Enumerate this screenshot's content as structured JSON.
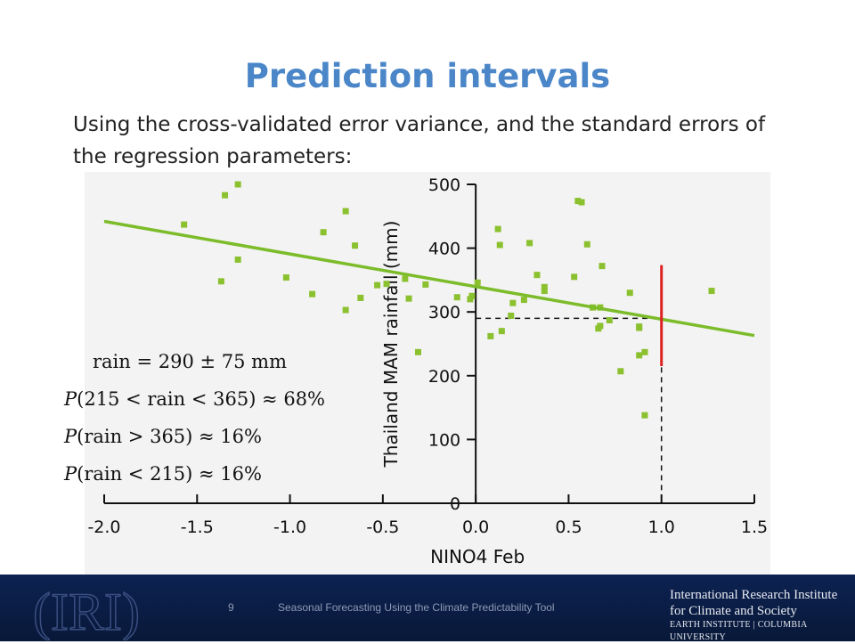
{
  "slide": {
    "title": "Prediction intervals",
    "subtitle": "Using the cross-validated error variance, and the standard errors of the regression parameters:"
  },
  "equations": {
    "eq1": "rain = 290 ± 75 mm",
    "eq2_p": "P",
    "eq2_body": "(215 < rain < 365) ≈ 68%",
    "eq3_p": "P",
    "eq3_body": "(rain > 365) ≈ 16%",
    "eq4_p": "P",
    "eq4_body": "(rain < 215) ≈ 16%"
  },
  "chart_data": {
    "type": "scatter",
    "xlabel": "NINO4 Feb",
    "ylabel": "Thailand MAM rainfall (mm)",
    "xlim": [
      -2.0,
      1.5
    ],
    "ylim": [
      0,
      500
    ],
    "x_ticks": [
      "-2.0",
      "-1.5",
      "-1.0",
      "-0.5",
      "0.0",
      "0.5",
      "1.0",
      "1.5"
    ],
    "y_ticks": [
      "0",
      "100",
      "200",
      "300",
      "400",
      "500"
    ],
    "points": [
      [
        -1.57,
        437
      ],
      [
        -1.35,
        483
      ],
      [
        -1.28,
        500
      ],
      [
        -1.37,
        348
      ],
      [
        -1.28,
        382
      ],
      [
        -1.02,
        354
      ],
      [
        -0.88,
        328
      ],
      [
        -0.82,
        425
      ],
      [
        -0.7,
        458
      ],
      [
        -0.7,
        303
      ],
      [
        -0.65,
        404
      ],
      [
        -0.62,
        322
      ],
      [
        -0.53,
        342
      ],
      [
        -0.48,
        344
      ],
      [
        -0.38,
        352
      ],
      [
        -0.36,
        321
      ],
      [
        -0.31,
        237
      ],
      [
        -0.27,
        343
      ],
      [
        -0.1,
        323
      ],
      [
        -0.02,
        325
      ],
      [
        -0.03,
        320
      ],
      [
        0.01,
        346
      ],
      [
        0.08,
        262
      ],
      [
        0.12,
        430
      ],
      [
        0.13,
        405
      ],
      [
        0.14,
        270
      ],
      [
        0.19,
        294
      ],
      [
        0.2,
        314
      ],
      [
        0.26,
        319
      ],
      [
        0.29,
        408
      ],
      [
        0.33,
        358
      ],
      [
        0.37,
        333
      ],
      [
        0.37,
        339
      ],
      [
        0.55,
        474
      ],
      [
        0.57,
        472
      ],
      [
        0.53,
        355
      ],
      [
        0.6,
        406
      ],
      [
        0.63,
        307
      ],
      [
        0.66,
        274
      ],
      [
        0.67,
        278
      ],
      [
        0.67,
        307
      ],
      [
        0.68,
        372
      ],
      [
        0.72,
        287
      ],
      [
        0.78,
        207
      ],
      [
        0.83,
        330
      ],
      [
        0.88,
        277
      ],
      [
        0.88,
        275
      ],
      [
        0.88,
        232
      ],
      [
        0.91,
        237
      ],
      [
        0.91,
        138
      ],
      [
        1.27,
        333
      ]
    ],
    "regression_line": {
      "x": [
        -2.0,
        1.5
      ],
      "y": [
        442,
        263
      ]
    },
    "forecast": {
      "x": 1.0,
      "predicted": 290,
      "interval": [
        215,
        365
      ]
    },
    "colors": {
      "points": "#8bc12f",
      "regression": "#7cbc2a",
      "interval": "#dd2020",
      "axis": "#111111"
    }
  },
  "footer": {
    "page_number": "9",
    "text": "Seasonal Forecasting Using the Climate Predictability Tool",
    "logo_text": "(IRI)",
    "org_line1": "International Research Institute",
    "org_line2": "for Climate and Society",
    "org_line3": "EARTH INSTITUTE | COLUMBIA UNIVERSITY"
  }
}
